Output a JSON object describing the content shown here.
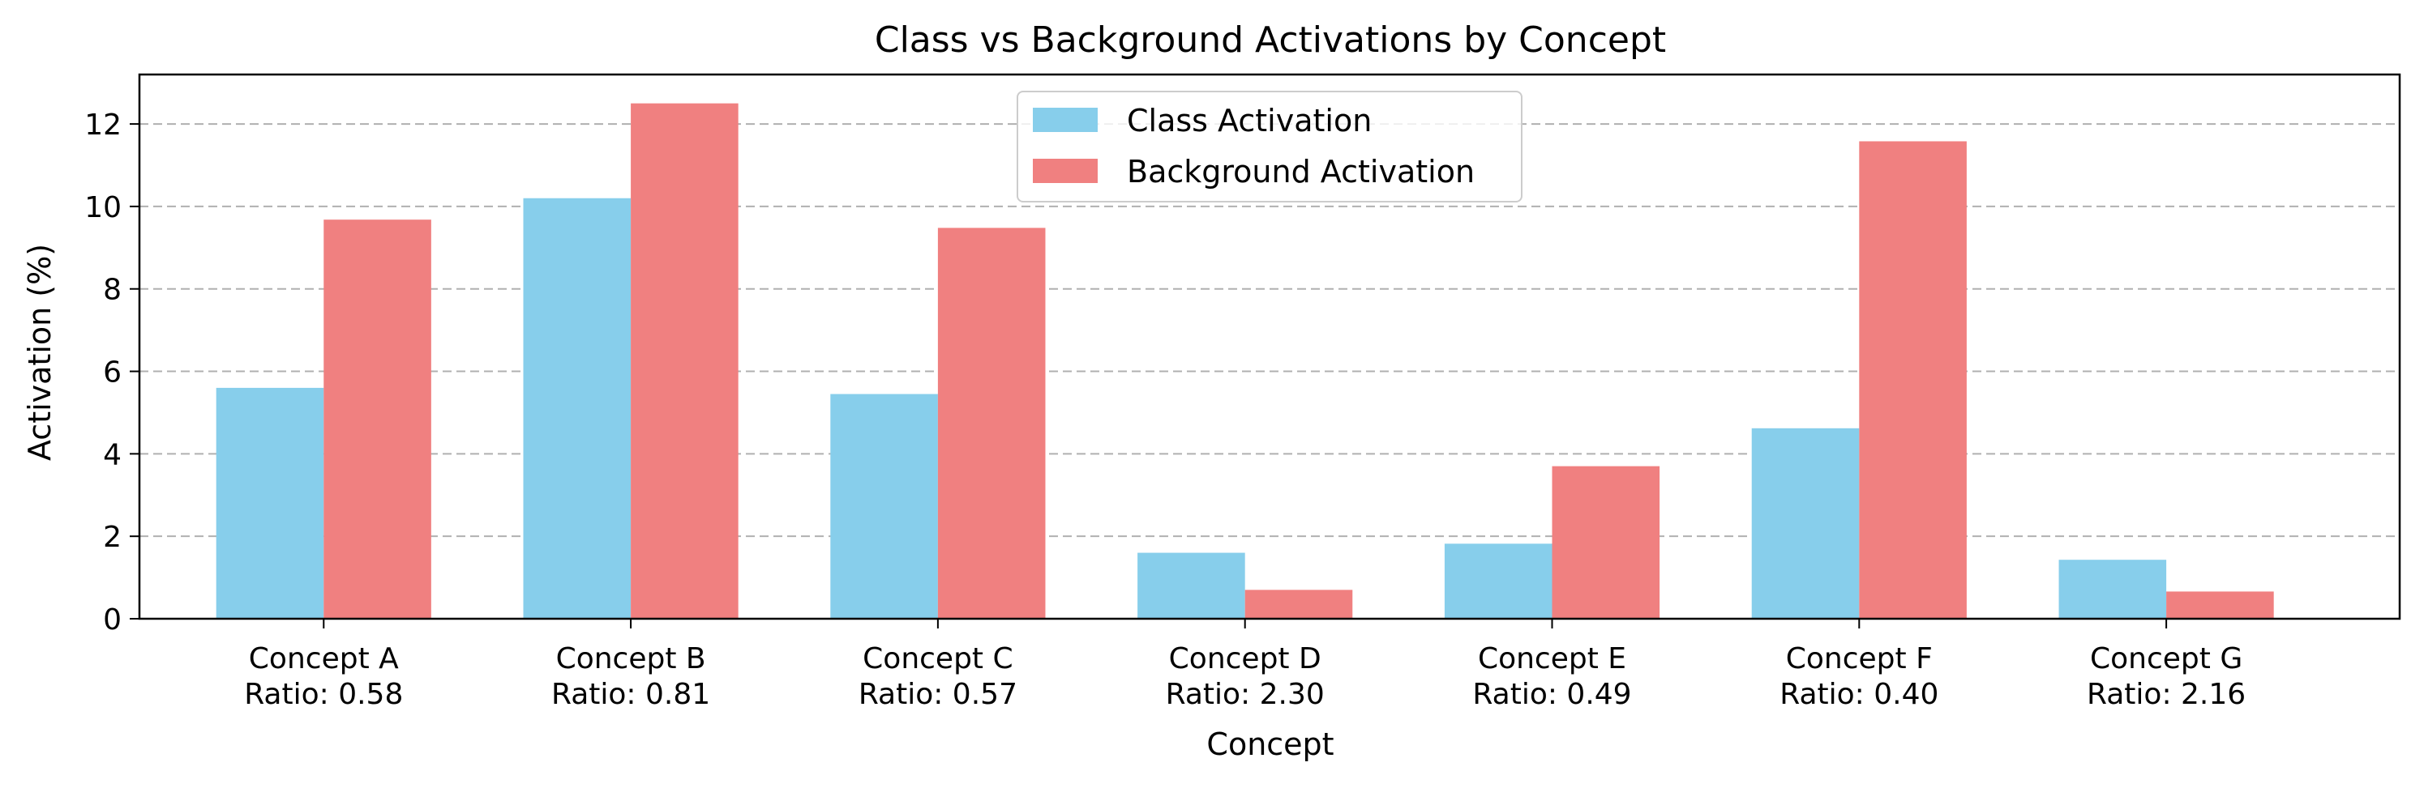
{
  "chart_data": {
    "type": "bar",
    "title": "Class vs Background Activations by Concept",
    "xlabel": "Concept",
    "ylabel": "Activation (%)",
    "ylim": [
      0,
      13.2
    ],
    "yticks": [
      0,
      2,
      4,
      6,
      8,
      10,
      12
    ],
    "grid": "y-dashed",
    "legend_position": "top-center",
    "categories": [
      "Concept A",
      "Concept B",
      "Concept C",
      "Concept D",
      "Concept E",
      "Concept F",
      "Concept G"
    ],
    "ratio_labels": [
      "Ratio: 0.58",
      "Ratio: 0.81",
      "Ratio: 0.57",
      "Ratio: 2.30",
      "Ratio: 0.49",
      "Ratio: 0.40",
      "Ratio: 2.16"
    ],
    "series": [
      {
        "name": "Class Activation",
        "color": "#87ceeb",
        "values": [
          5.6,
          10.2,
          5.45,
          1.6,
          1.82,
          4.62,
          1.43
        ]
      },
      {
        "name": "Background Activation",
        "color": "#f08080",
        "values": [
          9.68,
          12.5,
          9.48,
          0.7,
          3.7,
          11.58,
          0.66
        ]
      }
    ]
  }
}
